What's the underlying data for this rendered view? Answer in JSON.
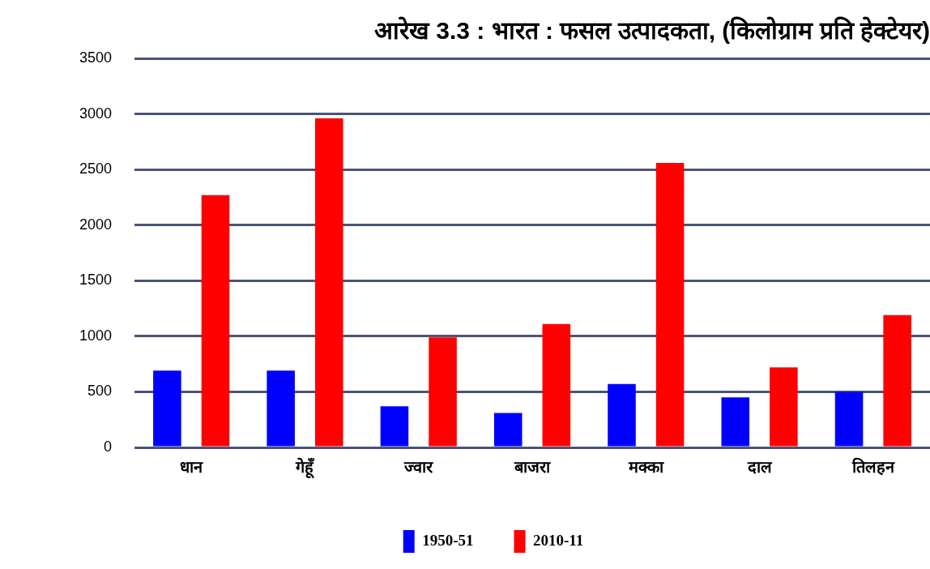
{
  "chart_data": {
    "type": "bar",
    "title": "आरेख 3.3 : भारत : फसल उत्पादकता, (किलोग्राम प्रति हेक्टेयर)",
    "categories": [
      "धान",
      "गेहूँ",
      "ज्वार",
      "बाजरा",
      "मक्का",
      "दाल",
      "तिलहन"
    ],
    "series": [
      {
        "name": "1950-51",
        "color": "#0000ff",
        "values": [
          690,
          690,
          370,
          310,
          570,
          450,
          500
        ]
      },
      {
        "name": "2010-11",
        "color": "#ff0000",
        "values": [
          2270,
          2960,
          990,
          1110,
          2560,
          720,
          1190
        ]
      }
    ],
    "ylim": [
      0,
      3500
    ],
    "yticks": [
      0,
      500,
      1000,
      1500,
      2000,
      2500,
      3000,
      3500
    ],
    "grid": "y",
    "legend": "bottom"
  }
}
